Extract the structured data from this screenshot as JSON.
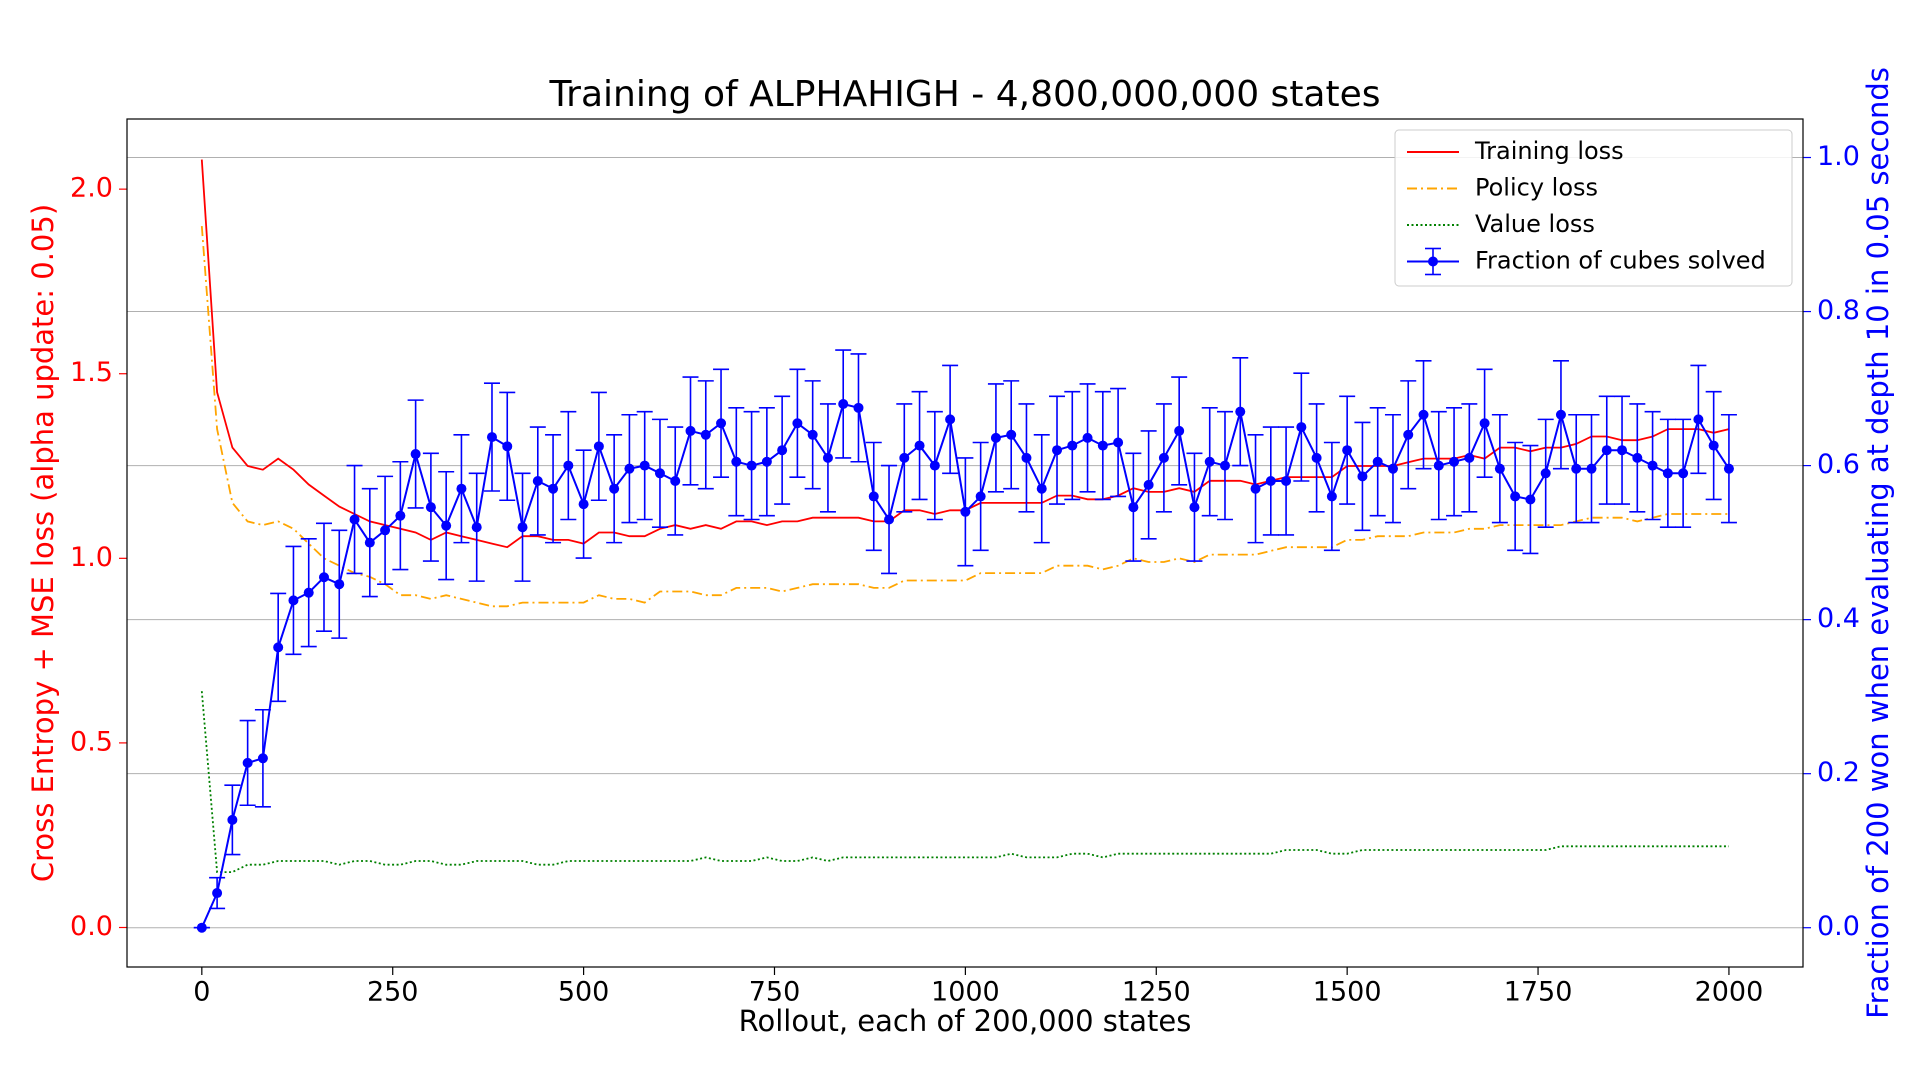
{
  "chart_data": {
    "type": "line",
    "title": "Training of ALPHAHIGH - 4,800,000,000 states",
    "xlabel": "Rollout, each of 200,000 states",
    "ylabel": "Cross Entropy + MSE loss (alpha update: 0.05)",
    "y2label": "Fraction of 200 won when evaluating at depth 10 in 0.05 seconds",
    "y_axis_color": "#ff0000",
    "y2_axis_color": "#0000ff",
    "xlim": [
      -98,
      2097
    ],
    "ylim": [
      -0.107,
      2.19
    ],
    "y2lim": [
      -0.051,
      1.05
    ],
    "xticks": [
      0,
      250,
      500,
      750,
      1000,
      1250,
      1500,
      1750,
      2000
    ],
    "yticks": [
      {
        "value": 0,
        "label": "0.0"
      },
      0.5,
      {
        "value": 1,
        "label": "1.0"
      },
      1.5,
      {
        "value": 2,
        "label": "2.0"
      }
    ],
    "y2ticks": [
      {
        "value": 0,
        "label": "0.0"
      },
      0.2,
      0.4,
      0.6,
      0.8,
      {
        "value": 1,
        "label": "1.0"
      }
    ],
    "grid": "y2",
    "legend": "upper right",
    "x": [
      0,
      20,
      40,
      60,
      80,
      100,
      120,
      140,
      160,
      180,
      200,
      220,
      240,
      260,
      280,
      300,
      320,
      340,
      360,
      380,
      400,
      420,
      440,
      460,
      480,
      500,
      520,
      540,
      560,
      580,
      600,
      620,
      640,
      660,
      680,
      700,
      720,
      740,
      760,
      780,
      800,
      820,
      840,
      860,
      880,
      900,
      920,
      940,
      960,
      980,
      1000,
      1020,
      1040,
      1060,
      1080,
      1100,
      1120,
      1140,
      1160,
      1180,
      1200,
      1220,
      1240,
      1260,
      1280,
      1300,
      1320,
      1340,
      1360,
      1380,
      1400,
      1420,
      1440,
      1460,
      1480,
      1500,
      1520,
      1540,
      1560,
      1580,
      1600,
      1620,
      1640,
      1660,
      1680,
      1700,
      1720,
      1740,
      1760,
      1780,
      1800,
      1820,
      1840,
      1860,
      1880,
      1900,
      1920,
      1940,
      1960,
      1980,
      2000
    ],
    "series": [
      {
        "name": "Training loss",
        "color": "#ff0000",
        "linestyle": "solid",
        "axis": "y",
        "values": [
          2.08,
          1.45,
          1.3,
          1.25,
          1.24,
          1.27,
          1.24,
          1.2,
          1.17,
          1.14,
          1.12,
          1.1,
          1.09,
          1.08,
          1.07,
          1.05,
          1.07,
          1.06,
          1.05,
          1.04,
          1.03,
          1.06,
          1.06,
          1.05,
          1.05,
          1.04,
          1.07,
          1.07,
          1.06,
          1.06,
          1.08,
          1.09,
          1.08,
          1.09,
          1.08,
          1.1,
          1.1,
          1.09,
          1.1,
          1.1,
          1.11,
          1.11,
          1.11,
          1.11,
          1.1,
          1.1,
          1.13,
          1.13,
          1.12,
          1.13,
          1.13,
          1.15,
          1.15,
          1.15,
          1.15,
          1.15,
          1.17,
          1.17,
          1.16,
          1.16,
          1.17,
          1.19,
          1.18,
          1.18,
          1.19,
          1.18,
          1.21,
          1.21,
          1.21,
          1.2,
          1.21,
          1.22,
          1.22,
          1.22,
          1.22,
          1.25,
          1.25,
          1.25,
          1.25,
          1.26,
          1.27,
          1.27,
          1.27,
          1.28,
          1.27,
          1.3,
          1.3,
          1.29,
          1.3,
          1.3,
          1.31,
          1.33,
          1.33,
          1.32,
          1.32,
          1.33,
          1.35,
          1.35,
          1.35,
          1.34,
          1.35
        ]
      },
      {
        "name": "Policy loss",
        "color": "#ffa500",
        "linestyle": "dashdot",
        "axis": "y",
        "values": [
          1.9,
          1.35,
          1.15,
          1.1,
          1.09,
          1.1,
          1.08,
          1.04,
          1.0,
          0.98,
          0.96,
          0.95,
          0.93,
          0.9,
          0.9,
          0.89,
          0.9,
          0.89,
          0.88,
          0.87,
          0.87,
          0.88,
          0.88,
          0.88,
          0.88,
          0.88,
          0.9,
          0.89,
          0.89,
          0.88,
          0.91,
          0.91,
          0.91,
          0.9,
          0.9,
          0.92,
          0.92,
          0.92,
          0.91,
          0.92,
          0.93,
          0.93,
          0.93,
          0.93,
          0.92,
          0.92,
          0.94,
          0.94,
          0.94,
          0.94,
          0.94,
          0.96,
          0.96,
          0.96,
          0.96,
          0.96,
          0.98,
          0.98,
          0.98,
          0.97,
          0.98,
          1.0,
          0.99,
          0.99,
          1.0,
          0.99,
          1.01,
          1.01,
          1.01,
          1.01,
          1.02,
          1.03,
          1.03,
          1.03,
          1.03,
          1.05,
          1.05,
          1.06,
          1.06,
          1.06,
          1.07,
          1.07,
          1.07,
          1.08,
          1.08,
          1.09,
          1.09,
          1.09,
          1.09,
          1.09,
          1.1,
          1.11,
          1.11,
          1.11,
          1.1,
          1.11,
          1.12,
          1.12,
          1.12,
          1.12,
          1.12
        ]
      },
      {
        "name": "Value loss",
        "color": "#008000",
        "linestyle": "dotted",
        "axis": "y",
        "values": [
          0.64,
          0.15,
          0.15,
          0.17,
          0.17,
          0.18,
          0.18,
          0.18,
          0.18,
          0.17,
          0.18,
          0.18,
          0.17,
          0.17,
          0.18,
          0.18,
          0.17,
          0.17,
          0.18,
          0.18,
          0.18,
          0.18,
          0.17,
          0.17,
          0.18,
          0.18,
          0.18,
          0.18,
          0.18,
          0.18,
          0.18,
          0.18,
          0.18,
          0.19,
          0.18,
          0.18,
          0.18,
          0.19,
          0.18,
          0.18,
          0.19,
          0.18,
          0.19,
          0.19,
          0.19,
          0.19,
          0.19,
          0.19,
          0.19,
          0.19,
          0.19,
          0.19,
          0.19,
          0.2,
          0.19,
          0.19,
          0.19,
          0.2,
          0.2,
          0.19,
          0.2,
          0.2,
          0.2,
          0.2,
          0.2,
          0.2,
          0.2,
          0.2,
          0.2,
          0.2,
          0.2,
          0.21,
          0.21,
          0.21,
          0.2,
          0.2,
          0.21,
          0.21,
          0.21,
          0.21,
          0.21,
          0.21,
          0.21,
          0.21,
          0.21,
          0.21,
          0.21,
          0.21,
          0.21,
          0.22,
          0.22,
          0.22,
          0.22,
          0.22,
          0.22,
          0.22,
          0.22,
          0.22,
          0.22,
          0.22,
          0.22
        ]
      },
      {
        "name": "Fraction of cubes solved",
        "color": "#0000ff",
        "linestyle": "solid",
        "marker": "o",
        "axis": "y2",
        "values": [
          0,
          0.045,
          0.14,
          0.214,
          0.22,
          0.364,
          0.425,
          0.435,
          0.455,
          0.446,
          0.53,
          0.5,
          0.516,
          0.535,
          0.615,
          0.546,
          0.522,
          0.57,
          0.52,
          0.637,
          0.625,
          0.52,
          0.58,
          0.57,
          0.6,
          0.55,
          0.625,
          0.57,
          0.596,
          0.6,
          0.59,
          0.58,
          0.645,
          0.64,
          0.655,
          0.605,
          0.6,
          0.605,
          0.62,
          0.655,
          0.64,
          0.61,
          0.68,
          0.675,
          0.56,
          0.53,
          0.61,
          0.626,
          0.6,
          0.66,
          0.54,
          0.56,
          0.636,
          0.64,
          0.61,
          0.57,
          0.62,
          0.626,
          0.636,
          0.626,
          0.63,
          0.546,
          0.575,
          0.61,
          0.645,
          0.546,
          0.605,
          0.6,
          0.67,
          0.57,
          0.58,
          0.58,
          0.65,
          0.61,
          0.56,
          0.62,
          0.586,
          0.605,
          0.596,
          0.64,
          0.666,
          0.6,
          0.605,
          0.61,
          0.655,
          0.596,
          0.56,
          0.556,
          0.59,
          0.666,
          0.596,
          0.596,
          0.62,
          0.62,
          0.61,
          0.6,
          0.59,
          0.59,
          0.66,
          0.626,
          0.596
        ],
        "errors": [
          0,
          0.02,
          0.045,
          0.055,
          0.063,
          0.07,
          0.07,
          0.07,
          0.07,
          0.07,
          0.07,
          0.07,
          0.07,
          0.07,
          0.07,
          0.07,
          0.07,
          0.07,
          0.07,
          0.07,
          0.07,
          0.07,
          0.07,
          0.07,
          0.07,
          0.07,
          0.07,
          0.07,
          0.07,
          0.07,
          0.07,
          0.07,
          0.07,
          0.07,
          0.07,
          0.07,
          0.07,
          0.07,
          0.07,
          0.07,
          0.07,
          0.07,
          0.07,
          0.07,
          0.07,
          0.07,
          0.07,
          0.07,
          0.07,
          0.07,
          0.07,
          0.07,
          0.07,
          0.07,
          0.07,
          0.07,
          0.07,
          0.07,
          0.07,
          0.07,
          0.07,
          0.07,
          0.07,
          0.07,
          0.07,
          0.07,
          0.07,
          0.07,
          0.07,
          0.07,
          0.07,
          0.07,
          0.07,
          0.07,
          0.07,
          0.07,
          0.07,
          0.07,
          0.07,
          0.07,
          0.07,
          0.07,
          0.07,
          0.07,
          0.07,
          0.07,
          0.07,
          0.07,
          0.07,
          0.07,
          0.07,
          0.07,
          0.07,
          0.07,
          0.07,
          0.07,
          0.07,
          0.07,
          0.07,
          0.07,
          0.07
        ]
      }
    ]
  }
}
